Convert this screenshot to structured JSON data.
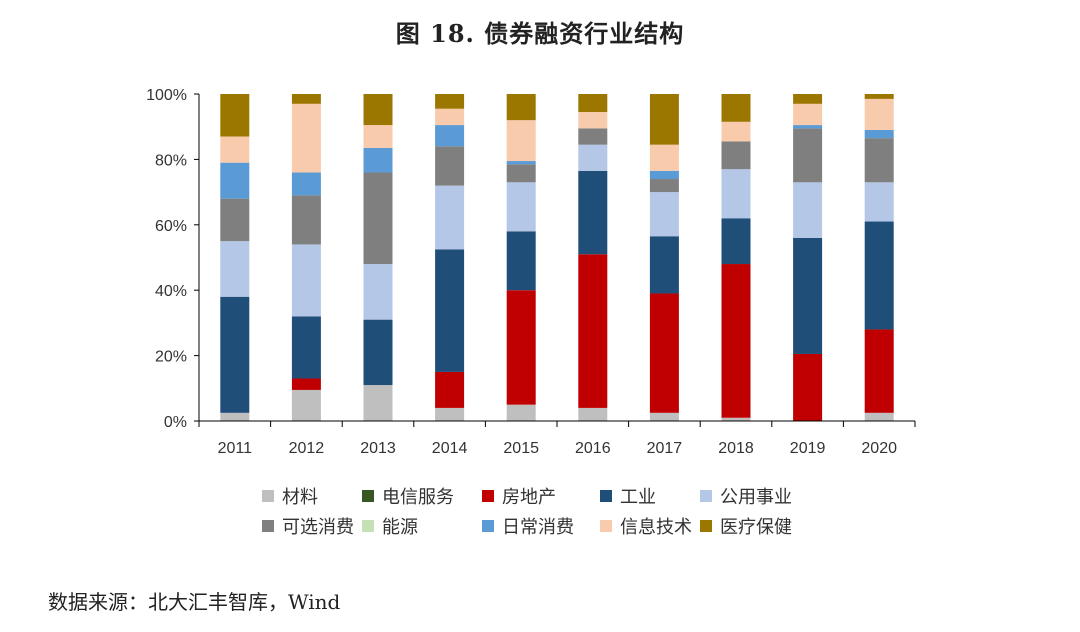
{
  "chart_data": {
    "type": "bar",
    "stacked": true,
    "title": "图 18. 债券融资行业结构",
    "categories": [
      "2011",
      "2012",
      "2013",
      "2014",
      "2015",
      "2016",
      "2017",
      "2018",
      "2019",
      "2020"
    ],
    "ylim": [
      0,
      100
    ],
    "yticks": [
      "0%",
      "20%",
      "40%",
      "60%",
      "80%",
      "100%"
    ],
    "series": [
      {
        "name": "材料",
        "color": "#bfbfbf",
        "values": [
          2.5,
          9.5,
          11,
          4,
          5,
          4,
          2.5,
          1,
          0,
          2.5
        ]
      },
      {
        "name": "电信服务",
        "color": "#375623",
        "values": [
          0,
          0,
          0,
          0,
          0,
          0,
          0,
          0,
          0,
          0
        ]
      },
      {
        "name": "房地产",
        "color": "#c00000",
        "values": [
          0,
          3.5,
          0,
          11,
          35,
          47,
          36.5,
          47,
          20.5,
          25.5
        ]
      },
      {
        "name": "工业",
        "color": "#1f4e79",
        "values": [
          35.5,
          19,
          20,
          37.5,
          18,
          25.5,
          17.5,
          14,
          35.5,
          33
        ]
      },
      {
        "name": "公用事业",
        "color": "#b4c7e7",
        "values": [
          17,
          22,
          17,
          19.5,
          15,
          8,
          13.5,
          15,
          17,
          12
        ]
      },
      {
        "name": "可选消费",
        "color": "#7f7f7f",
        "values": [
          13,
          15,
          28,
          12,
          5.5,
          5,
          4,
          8.5,
          16.5,
          13.5
        ]
      },
      {
        "name": "能源",
        "color": "#c5e0b4",
        "values": [
          0,
          0,
          0,
          0,
          0,
          0,
          0,
          0,
          0,
          0
        ]
      },
      {
        "name": "日常消费",
        "color": "#5b9bd5",
        "values": [
          11,
          7,
          7.5,
          6.5,
          1,
          0,
          2.5,
          0,
          1,
          2.5
        ]
      },
      {
        "name": "信息技术",
        "color": "#f8cbad",
        "values": [
          8,
          21,
          7,
          5,
          12.5,
          5,
          8,
          6,
          6.5,
          9.5
        ]
      },
      {
        "name": "医疗保健",
        "color": "#9c7700",
        "values": [
          13,
          3,
          9.5,
          4.5,
          8,
          5.5,
          15.5,
          8.5,
          3,
          1.5
        ]
      }
    ]
  },
  "source_text": "数据来源：北大汇丰智库，Wind"
}
